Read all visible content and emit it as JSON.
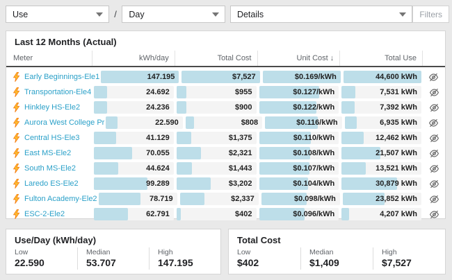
{
  "toolbar": {
    "metric_select": "Use",
    "separator": "/",
    "period_select": "Day",
    "view_select": "Details",
    "filters_label": "Filters"
  },
  "table": {
    "title": "Last 12 Months (Actual)",
    "columns": [
      "Meter",
      "kWh/day",
      "Total Cost",
      "Unit Cost",
      "Total Use"
    ],
    "sort_icon": "↓",
    "sorted_by": "Unit Cost",
    "sort_direction": "descending",
    "bar_color": "#bddee9",
    "track_color": "#f4f4f4",
    "meter_link_color": "#2aa0c8",
    "rows": [
      {
        "name": "Early Beginnings-Ele1",
        "cells": [
          {
            "text": "147.195",
            "pct": 100
          },
          {
            "text": "$7,527",
            "pct": 100
          },
          {
            "text": "$0.169/kWh",
            "pct": 100
          },
          {
            "text": "44,600 kWh",
            "pct": 100
          }
        ]
      },
      {
        "name": "Transportation-Ele4",
        "cells": [
          {
            "text": "24.692",
            "pct": 16.8
          },
          {
            "text": "$955",
            "pct": 12.7
          },
          {
            "text": "$0.127/kWh",
            "pct": 75.1
          },
          {
            "text": "7,531 kWh",
            "pct": 16.9
          }
        ]
      },
      {
        "name": "Hinkley HS-Ele2",
        "cells": [
          {
            "text": "24.236",
            "pct": 16.5
          },
          {
            "text": "$900",
            "pct": 12.0
          },
          {
            "text": "$0.122/kWh",
            "pct": 72.2
          },
          {
            "text": "7,392 kWh",
            "pct": 16.6
          }
        ]
      },
      {
        "name": "Aurora West College Pr",
        "cells": [
          {
            "text": "22.590",
            "pct": 15.3
          },
          {
            "text": "$808",
            "pct": 10.7
          },
          {
            "text": "$0.116/kWh",
            "pct": 68.6
          },
          {
            "text": "6,935 kWh",
            "pct": 15.6
          }
        ]
      },
      {
        "name": "Central HS-Ele3",
        "cells": [
          {
            "text": "41.129",
            "pct": 27.9
          },
          {
            "text": "$1,375",
            "pct": 18.3
          },
          {
            "text": "$0.110/kWh",
            "pct": 65.1
          },
          {
            "text": "12,462 kWh",
            "pct": 27.9
          }
        ]
      },
      {
        "name": "East MS-Ele2",
        "cells": [
          {
            "text": "70.055",
            "pct": 47.6
          },
          {
            "text": "$2,321",
            "pct": 30.8
          },
          {
            "text": "$0.108/kWh",
            "pct": 63.9
          },
          {
            "text": "21,507 kWh",
            "pct": 48.2
          }
        ]
      },
      {
        "name": "South MS-Ele2",
        "cells": [
          {
            "text": "44.624",
            "pct": 30.3
          },
          {
            "text": "$1,443",
            "pct": 19.2
          },
          {
            "text": "$0.107/kWh",
            "pct": 63.3
          },
          {
            "text": "13,521 kWh",
            "pct": 30.3
          }
        ]
      },
      {
        "name": "Laredo ES-Ele2",
        "cells": [
          {
            "text": "99.289",
            "pct": 67.5
          },
          {
            "text": "$3,202",
            "pct": 42.5
          },
          {
            "text": "$0.104/kWh",
            "pct": 61.5
          },
          {
            "text": "30,879 kWh",
            "pct": 69.2
          }
        ]
      },
      {
        "name": "Fulton Academy-Ele2",
        "cells": [
          {
            "text": "78.719",
            "pct": 53.5
          },
          {
            "text": "$2,337",
            "pct": 31.0
          },
          {
            "text": "$0.098/kWh",
            "pct": 58.0
          },
          {
            "text": "23,852 kWh",
            "pct": 53.5
          }
        ]
      },
      {
        "name": "ESC-2-Ele2",
        "cells": [
          {
            "text": "62.791",
            "pct": 42.7
          },
          {
            "text": "$402",
            "pct": 5.3
          },
          {
            "text": "$0.096/kWh",
            "pct": 56.8
          },
          {
            "text": "4,207 kWh",
            "pct": 9.4
          }
        ]
      }
    ]
  },
  "summary_cards": [
    {
      "title": "Use/Day (kWh/day)",
      "stats": [
        {
          "label": "Low",
          "value": "22.590"
        },
        {
          "label": "Median",
          "value": "53.707"
        },
        {
          "label": "High",
          "value": "147.195"
        }
      ]
    },
    {
      "title": "Total Cost",
      "stats": [
        {
          "label": "Low",
          "value": "$402"
        },
        {
          "label": "Median",
          "value": "$1,409"
        },
        {
          "label": "High",
          "value": "$7,527"
        }
      ]
    }
  ]
}
